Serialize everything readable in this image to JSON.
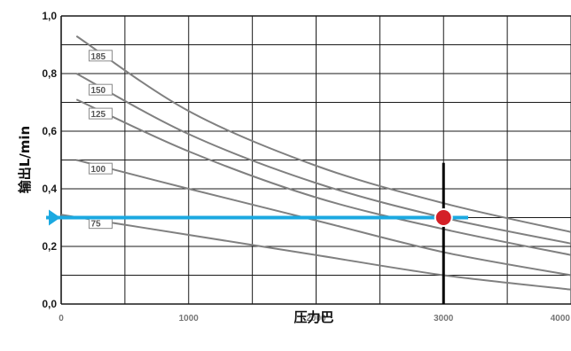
{
  "chart_data": {
    "type": "line",
    "title": "",
    "xlabel": "压力巴",
    "ylabel": "输出L/min",
    "xlim": [
      0,
      4000
    ],
    "ylim": [
      0,
      1.0
    ],
    "x_ticks": [
      "0",
      "1000",
      "2000",
      "3000",
      "4000"
    ],
    "y_ticks": [
      "0,0",
      "0,2",
      "0,4",
      "0,6",
      "0,8",
      "1,0"
    ],
    "grid": true,
    "series": [
      {
        "name": "185",
        "x": [
          120,
          1000,
          2000,
          3000,
          4000
        ],
        "y": [
          0.93,
          0.67,
          0.48,
          0.35,
          0.25
        ]
      },
      {
        "name": "150",
        "x": [
          120,
          1000,
          2000,
          3000,
          4000
        ],
        "y": [
          0.8,
          0.59,
          0.42,
          0.3,
          0.21
        ]
      },
      {
        "name": "125",
        "x": [
          120,
          1000,
          2000,
          3000,
          4000
        ],
        "y": [
          0.71,
          0.53,
          0.37,
          0.26,
          0.17
        ]
      },
      {
        "name": "100",
        "x": [
          120,
          1000,
          2000,
          3000,
          4000
        ],
        "y": [
          0.5,
          0.4,
          0.29,
          0.18,
          0.1
        ]
      },
      {
        "name": "75",
        "x": [
          0,
          1000,
          2000,
          3000,
          4000
        ],
        "y": [
          0.31,
          0.24,
          0.17,
          0.1,
          0.05
        ]
      }
    ],
    "annotations": {
      "marker_point": {
        "x": 3000,
        "y": 0.3
      },
      "vertical_line_x": 3000,
      "horizontal_arrow_y": 0.3
    },
    "colors": {
      "curve": "#808080",
      "grid": "#1a1a1a",
      "marker": "#d42027",
      "arrow": "#1ba9e1",
      "guide": "#000000"
    }
  }
}
